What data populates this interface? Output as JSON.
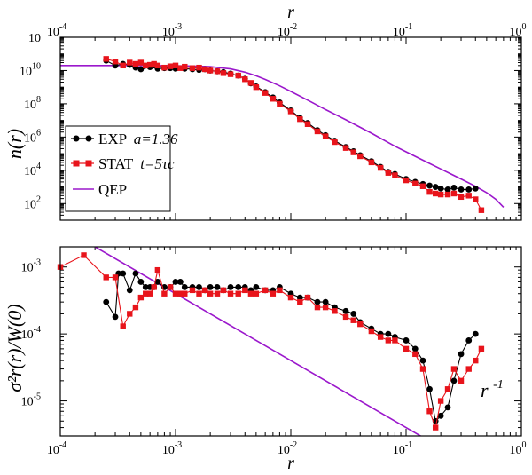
{
  "colors": {
    "exp": "#000000",
    "stat": "#e8141b",
    "qep": "#9b18cc",
    "axis": "#000000"
  },
  "chart_data": [
    {
      "type": "line",
      "panel": "top",
      "xscale": "log",
      "yscale": "log",
      "xlim": [
        0.0001,
        1
      ],
      "ylim": [
        10,
        1000000000000.0
      ],
      "xlabel_top": "r",
      "ylabel": "n(r)",
      "x_tick_labels": [
        "10",
        "10",
        "10",
        "10",
        "10"
      ],
      "x_tick_exps": [
        "-4",
        "-3",
        "-2",
        "-1",
        "0"
      ],
      "y_tick_labels": [
        "10",
        "10",
        "10",
        "10",
        "10",
        "10"
      ],
      "y_tick_exps": [
        "2",
        "4",
        "6",
        "8",
        "10",
        ""
      ],
      "legend": {
        "placement": "left-middle",
        "entries": [
          {
            "name": "EXP",
            "detail": "a=1.36"
          },
          {
            "name": "STAT",
            "detail": "t=5τc"
          },
          {
            "name": "QEP",
            "detail": ""
          }
        ]
      },
      "series": [
        {
          "name": "EXP a=1.36",
          "x": [
            0.00025,
            0.0003,
            0.00035,
            0.0004,
            0.00045,
            0.0005,
            0.0006,
            0.0007,
            0.0008,
            0.0009,
            0.001,
            0.0012,
            0.0014,
            0.0016,
            0.0018,
            0.002,
            0.0023,
            0.0026,
            0.003,
            0.0035,
            0.004,
            0.0045,
            0.005,
            0.006,
            0.007,
            0.008,
            0.01,
            0.012,
            0.014,
            0.017,
            0.02,
            0.024,
            0.03,
            0.035,
            0.04,
            0.05,
            0.06,
            0.07,
            0.08,
            0.1,
            0.12,
            0.14,
            0.16,
            0.18,
            0.2,
            0.23,
            0.26,
            0.3,
            0.35,
            0.4
          ],
          "y": [
            40000000000.0,
            20000000000.0,
            25000000000.0,
            22000000000.0,
            15000000000.0,
            12000000000.0,
            16000000000.0,
            13000000000.0,
            14000000000.0,
            14000000000.0,
            13000000000.0,
            13000000000.0,
            12000000000.0,
            11000000000.0,
            12000000000.0,
            10000000000.0,
            9000000000.0,
            8000000000.0,
            6500000000.0,
            5000000000.0,
            3200000000.0,
            1700000000.0,
            1100000000.0,
            500000000.0,
            240000000.0,
            120000000.0,
            40000000.0,
            14000000.0,
            7000000.0,
            2600000.0,
            1300000.0,
            600000.0,
            250000.0,
            140000.0,
            80000.0,
            35000.0,
            16000.0,
            8000.0,
            6000.0,
            3000.0,
            2000.0,
            1500.0,
            1200.0,
            1000.0,
            800,
            700,
            900,
            700,
            700,
            800
          ]
        },
        {
          "name": "STAT t=5τc",
          "x": [
            0.00025,
            0.0003,
            0.00035,
            0.0004,
            0.00045,
            0.0005,
            0.00055,
            0.0006,
            0.00065,
            0.0007,
            0.0008,
            0.0009,
            0.001,
            0.0011,
            0.0012,
            0.0014,
            0.0016,
            0.0018,
            0.002,
            0.0023,
            0.0026,
            0.003,
            0.0035,
            0.004,
            0.0045,
            0.005,
            0.006,
            0.007,
            0.008,
            0.01,
            0.012,
            0.014,
            0.017,
            0.02,
            0.024,
            0.03,
            0.035,
            0.04,
            0.05,
            0.06,
            0.07,
            0.08,
            0.1,
            0.12,
            0.14,
            0.16,
            0.18,
            0.2,
            0.23,
            0.26,
            0.3,
            0.35,
            0.4,
            0.45
          ],
          "y": [
            50000000000.0,
            35000000000.0,
            20000000000.0,
            30000000000.0,
            25000000000.0,
            30000000000.0,
            20000000000.0,
            22000000000.0,
            25000000000.0,
            20000000000.0,
            15000000000.0,
            18000000000.0,
            20000000000.0,
            14000000000.0,
            17000000000.0,
            14000000000.0,
            15000000000.0,
            12000000000.0,
            10000000000.0,
            9000000000.0,
            7000000000.0,
            6000000000.0,
            5000000000.0,
            3000000000.0,
            1800000000.0,
            1000000000.0,
            450000000.0,
            200000000.0,
            100000000.0,
            35000000.0,
            12000000.0,
            6000000.0,
            2200000.0,
            1100000.0,
            500000.0,
            220000.0,
            120000.0,
            70000.0,
            30000.0,
            14000.0,
            7000.0,
            5000.0,
            2500.0,
            1600.0,
            1100.0,
            500,
            400,
            350,
            350,
            400,
            250,
            300,
            180,
            40
          ]
        },
        {
          "name": "QEP",
          "x": [
            0.0001,
            0.0002,
            0.0005,
            0.001,
            0.0015,
            0.002,
            0.003,
            0.004,
            0.005,
            0.006,
            0.008,
            0.01,
            0.015,
            0.02,
            0.03,
            0.05,
            0.08,
            0.1,
            0.15,
            0.2,
            0.3,
            0.4,
            0.5,
            0.6,
            0.7
          ],
          "y": [
            20000000000.0,
            20000000000.0,
            20000000000.0,
            19500000000.0,
            18500000000.0,
            17000000000.0,
            12500000000.0,
            8000000000.0,
            4800000000.0,
            2900000000.0,
            1200000000.0,
            550000000.0,
            130000000.0,
            45000000.0,
            11000000.0,
            1700000.0,
            280000.0,
            130000.0,
            32000.0,
            12000.0,
            3000.0,
            1100.0,
            450,
            180,
            60
          ]
        }
      ]
    },
    {
      "type": "line",
      "panel": "bottom",
      "xscale": "log",
      "yscale": "log",
      "xlim": [
        0.0001,
        1
      ],
      "ylim": [
        3e-06,
        0.002
      ],
      "xlabel": "r",
      "ylabel": "σ²r(r)/W(0)",
      "x_tick_labels": [
        "10",
        "10",
        "10",
        "10",
        "10"
      ],
      "x_tick_exps": [
        "-4",
        "-3",
        "-2",
        "-1",
        "0"
      ],
      "y_tick_labels": [
        "10",
        "10",
        "10"
      ],
      "y_tick_exps": [
        "-3",
        "-4",
        "-5"
      ],
      "annotation": {
        "text": "r",
        "exp": "-1",
        "placement": "lower-right"
      },
      "series": [
        {
          "name": "EXP a=1.36",
          "x": [
            0.00025,
            0.0003,
            0.00032,
            0.00035,
            0.0004,
            0.00045,
            0.0005,
            0.00055,
            0.0006,
            0.00065,
            0.0007,
            0.0008,
            0.0009,
            0.001,
            0.0011,
            0.0012,
            0.0014,
            0.0016,
            0.0018,
            0.002,
            0.0023,
            0.0026,
            0.003,
            0.0035,
            0.004,
            0.0045,
            0.005,
            0.006,
            0.007,
            0.008,
            0.01,
            0.012,
            0.014,
            0.017,
            0.02,
            0.024,
            0.03,
            0.035,
            0.04,
            0.05,
            0.06,
            0.07,
            0.08,
            0.1,
            0.12,
            0.14,
            0.16,
            0.18,
            0.2,
            0.23,
            0.26,
            0.3,
            0.35,
            0.4
          ],
          "y": [
            0.0003,
            0.00018,
            0.0008,
            0.0008,
            0.00045,
            0.0008,
            0.0006,
            0.0005,
            0.0005,
            0.0005,
            0.0006,
            0.0005,
            0.0005,
            0.0006,
            0.0006,
            0.0005,
            0.0005,
            0.0005,
            0.00045,
            0.0005,
            0.0005,
            0.00045,
            0.0005,
            0.0005,
            0.0005,
            0.00045,
            0.0005,
            0.00045,
            0.00045,
            0.0005,
            0.0004,
            0.00035,
            0.00035,
            0.0003,
            0.0003,
            0.00025,
            0.00022,
            0.0002,
            0.00015,
            0.00012,
            0.0001,
            0.0001,
            9e-05,
            8e-05,
            6e-05,
            4e-05,
            1.5e-05,
            5e-06,
            6e-06,
            8e-06,
            2e-05,
            5e-05,
            8e-05,
            0.0001
          ]
        },
        {
          "name": "STAT t=5τc",
          "x": [
            0.0001,
            0.00016,
            0.00025,
            0.0003,
            0.00035,
            0.0004,
            0.00045,
            0.0005,
            0.00055,
            0.0006,
            0.00065,
            0.0007,
            0.0008,
            0.0009,
            0.001,
            0.0011,
            0.0012,
            0.0014,
            0.0016,
            0.0018,
            0.002,
            0.0023,
            0.0026,
            0.003,
            0.0035,
            0.004,
            0.0045,
            0.005,
            0.006,
            0.007,
            0.008,
            0.01,
            0.012,
            0.014,
            0.017,
            0.02,
            0.024,
            0.03,
            0.035,
            0.04,
            0.05,
            0.06,
            0.07,
            0.08,
            0.1,
            0.12,
            0.14,
            0.16,
            0.18,
            0.2,
            0.23,
            0.26,
            0.3,
            0.35,
            0.4,
            0.45
          ],
          "y": [
            0.001,
            0.0015,
            0.0007,
            0.0007,
            0.00013,
            0.0002,
            0.00025,
            0.00035,
            0.0004,
            0.0004,
            0.0005,
            0.0009,
            0.0004,
            0.0005,
            0.0004,
            0.0004,
            0.0004,
            0.00045,
            0.0004,
            0.00045,
            0.0004,
            0.0004,
            0.00045,
            0.0004,
            0.0004,
            0.00045,
            0.0004,
            0.0004,
            0.00045,
            0.0004,
            0.00045,
            0.00035,
            0.0003,
            0.00035,
            0.00025,
            0.00025,
            0.00022,
            0.00018,
            0.00016,
            0.00014,
            0.00011,
            9e-05,
            8e-05,
            8e-05,
            6e-05,
            5e-05,
            3e-05,
            7e-06,
            4e-06,
            1e-05,
            1.5e-05,
            3e-05,
            2e-05,
            3e-05,
            4e-05,
            6e-05
          ]
        },
        {
          "name": "r^-1",
          "x": [
            0.0001,
            1
          ],
          "y": [
            0.004,
            4e-07
          ]
        }
      ]
    }
  ]
}
